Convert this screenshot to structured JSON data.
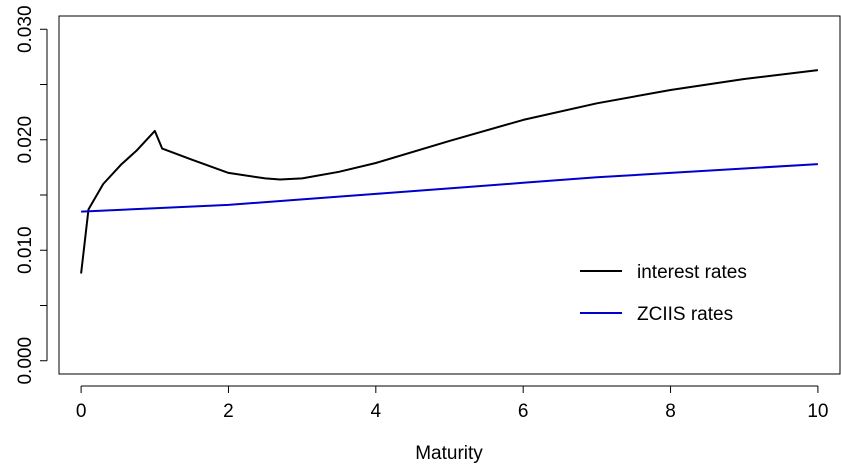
{
  "chart_data": {
    "type": "line",
    "title": "",
    "xlabel": "Maturity",
    "ylabel": "",
    "xlim": [
      -0.3,
      10.3
    ],
    "ylim": [
      -0.0012,
      0.0312
    ],
    "x_ticks": [
      0,
      2,
      4,
      6,
      8,
      10
    ],
    "x_tick_labels": [
      "0",
      "2",
      "4",
      "6",
      "8",
      "10"
    ],
    "y_ticks": [
      0.0,
      0.005,
      0.01,
      0.015,
      0.02,
      0.025,
      0.03
    ],
    "y_tick_labels": [
      "0.000",
      "",
      "0.010",
      "",
      "0.020",
      "",
      "0.030"
    ],
    "grid": false,
    "legend_position": "right",
    "series": [
      {
        "name": "interest rates",
        "color": "#000000",
        "x": [
          0,
          0.1,
          0.3,
          0.55,
          0.75,
          1.0,
          1.1,
          1.5,
          2.0,
          2.5,
          2.7,
          3.0,
          3.5,
          4.0,
          5.0,
          6.0,
          7.0,
          8.0,
          9.0,
          10.0
        ],
        "y": [
          0.0079,
          0.0137,
          0.016,
          0.0178,
          0.019,
          0.0208,
          0.0192,
          0.0182,
          0.017,
          0.0165,
          0.0164,
          0.0165,
          0.0171,
          0.0179,
          0.0199,
          0.0218,
          0.0233,
          0.0245,
          0.0255,
          0.0263
        ]
      },
      {
        "name": "ZCIIS rates",
        "color": "#0000cc",
        "x": [
          0,
          1,
          2,
          3,
          4,
          5,
          6,
          7,
          8,
          9,
          10
        ],
        "y": [
          0.0135,
          0.0138,
          0.0141,
          0.0146,
          0.0151,
          0.0156,
          0.0161,
          0.0166,
          0.017,
          0.0174,
          0.0178
        ]
      }
    ]
  }
}
